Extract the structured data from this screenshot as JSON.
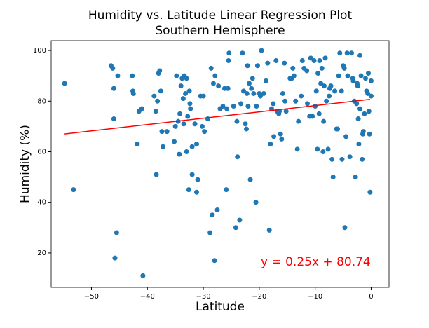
{
  "chart_data": {
    "type": "scatter",
    "title": "Humidity vs. Latitude Linear Regression Plot",
    "subtitle": "Southern Hemisphere",
    "x_label": "Latitude",
    "y_label": "Humidity (%)",
    "color": "#1f77b4",
    "x": [
      -54.8,
      -53.2,
      -46.5,
      -46.2,
      -46,
      -46,
      -45.8,
      -45.5,
      -45.3,
      -42.7,
      -42.6,
      -42.5,
      -41.8,
      -41.5,
      -41,
      -40.8,
      -38.8,
      -38.5,
      -38.4,
      -38.2,
      -38,
      -37.8,
      -37.6,
      -37.4,
      -37.2,
      -36.5,
      -35.2,
      -35,
      -34.8,
      -34.5,
      -34.3,
      -34.2,
      -34,
      -33.8,
      -33.6,
      -33.5,
      -33.4,
      -33.2,
      -33,
      -33,
      -32.8,
      -32.6,
      -32.5,
      -32.4,
      -32.3,
      -32,
      -32,
      -31.5,
      -31.2,
      -31.2,
      -31,
      -30.5,
      -30.2,
      -30,
      -29.8,
      -29.2,
      -28.8,
      -28.6,
      -28.4,
      -28.2,
      -28,
      -27.9,
      -27.5,
      -27.3,
      -27,
      -26.5,
      -26.2,
      -25.9,
      -25.8,
      -25.6,
      -25.5,
      -25.4,
      -24.6,
      -24.2,
      -24,
      -23.9,
      -23.5,
      -23.3,
      -23,
      -22.8,
      -22.5,
      -22.3,
      -22.2,
      -22.1,
      -22,
      -21.8,
      -21.6,
      -21.4,
      -21.2,
      -21,
      -20.6,
      -20.5,
      -20.3,
      -20,
      -19.8,
      -19.6,
      -19.2,
      -18.8,
      -18.5,
      -18.2,
      -18,
      -17.8,
      -17.5,
      -17.4,
      -17,
      -16.8,
      -16.5,
      -16.4,
      -16.2,
      -16,
      -15.8,
      -15.5,
      -15.4,
      -15.2,
      -14.5,
      -14.2,
      -14,
      -13.8,
      -13.5,
      -13.2,
      -13,
      -12.5,
      -12.3,
      -12,
      -11.5,
      -11.4,
      -11,
      -10.8,
      -10.5,
      -10.2,
      -10,
      -9.8,
      -9.6,
      -9.5,
      -9.3,
      -9.2,
      -9,
      -8.8,
      -8.6,
      -8.5,
      -8.4,
      -8.2,
      -8,
      -7.7,
      -7.5,
      -7.4,
      -7.2,
      -7,
      -6.8,
      -6.5,
      -6.2,
      -6,
      -5.8,
      -5.6,
      -5.3,
      -5.2,
      -5,
      -4.8,
      -4.7,
      -4.5,
      -4.3,
      -4.2,
      -3.8,
      -3.5,
      -3.3,
      -3.2,
      -3,
      -2.8,
      -2.6,
      -2.5,
      -2.4,
      -2.3,
      -2.2,
      -2,
      -2,
      -1.8,
      -1.6,
      -1.5,
      -1.4,
      -1.2,
      -1,
      -0.8,
      -0.6,
      -0.5,
      -0.4,
      -0.3,
      -0.2,
      0,
      0
    ],
    "values": [
      87,
      45,
      94,
      93,
      85,
      73,
      18,
      28,
      90,
      90,
      84,
      83,
      63,
      76,
      77,
      11,
      82,
      76,
      51,
      80,
      91,
      92,
      84,
      68,
      62,
      68,
      64,
      70,
      90,
      72,
      59,
      75,
      86,
      89,
      81,
      71,
      90,
      83,
      60,
      89,
      74,
      45,
      84,
      79,
      77,
      62,
      51,
      71,
      44,
      63,
      49,
      82,
      70,
      82,
      68,
      73,
      28,
      93,
      35,
      87,
      17,
      90,
      37,
      86,
      77,
      78,
      85,
      45,
      77,
      85,
      96,
      99,
      78,
      30,
      72,
      58,
      33,
      79,
      99,
      84,
      71,
      69,
      83,
      94,
      78,
      87,
      49,
      85,
      89,
      83,
      40,
      78,
      94,
      83,
      82,
      100,
      83,
      88,
      95,
      29,
      63,
      77,
      79,
      66,
      96,
      76,
      75,
      76,
      67,
      65,
      83,
      95,
      80,
      76,
      89,
      89,
      93,
      90,
      80,
      61,
      72,
      82,
      96,
      93,
      92,
      79,
      74,
      97,
      74,
      96,
      78,
      84,
      61,
      91,
      75,
      96,
      87,
      93,
      60,
      72,
      86,
      97,
      80,
      61,
      82,
      85,
      86,
      57,
      50,
      84,
      69,
      69,
      90,
      99,
      84,
      57,
      94,
      93,
      30,
      66,
      99,
      90,
      58,
      99,
      89,
      88,
      80,
      50,
      79,
      87,
      86,
      73,
      63,
      98,
      77,
      90,
      57,
      67,
      68,
      75,
      89,
      84,
      83,
      91,
      76,
      67,
      44,
      82,
      88
    ],
    "regression": {
      "color": "#ff0000",
      "x": [
        -54.8,
        -0.2
      ],
      "values": [
        67.04,
        80.69
      ]
    },
    "annotation": "y = 0.25x + 80.74",
    "xlim": [
      -57.2,
      3.2
    ],
    "ylim": [
      6.4,
      103.9
    ],
    "xticks": [
      {
        "value": -50,
        "label": "−50"
      },
      {
        "value": -40,
        "label": "−40"
      },
      {
        "value": -30,
        "label": "−30"
      },
      {
        "value": -20,
        "label": "−20"
      },
      {
        "value": -10,
        "label": "−10"
      },
      0
    ],
    "yticks": [
      20,
      40,
      60,
      80,
      100
    ],
    "grid": false
  }
}
